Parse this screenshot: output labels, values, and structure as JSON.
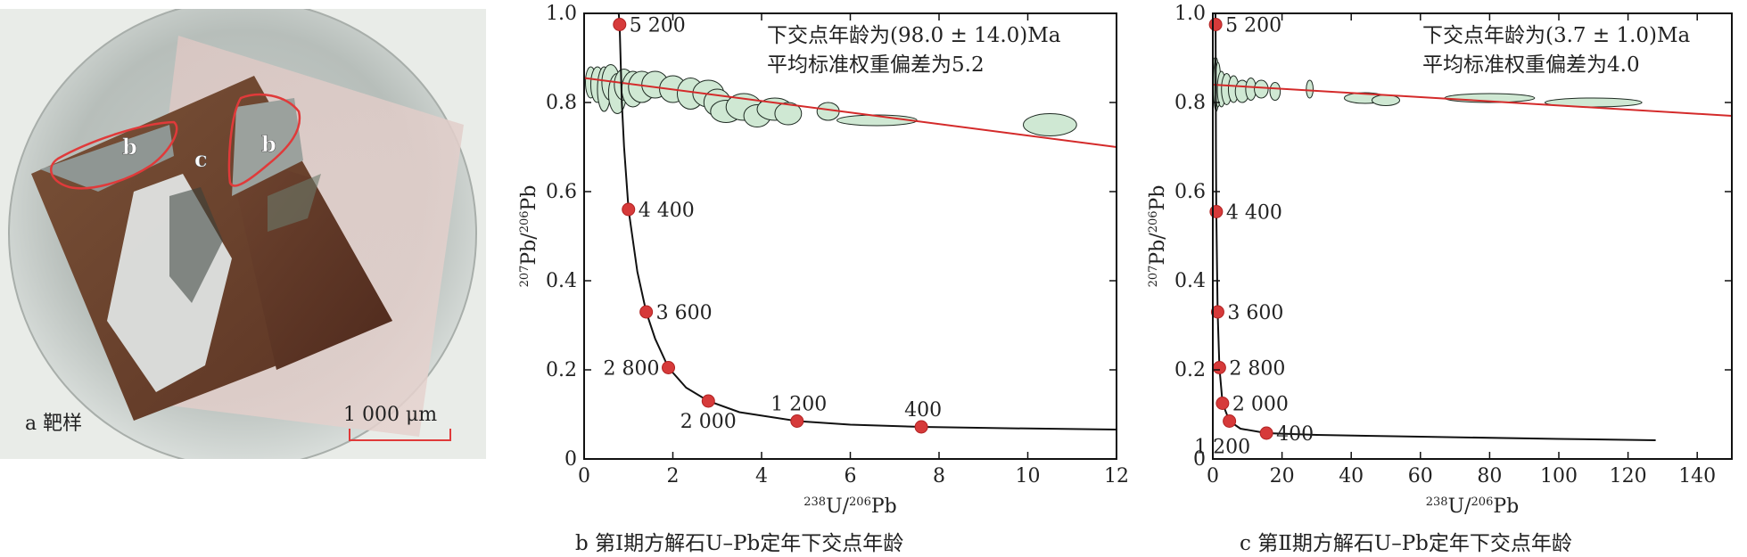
{
  "panel_a": {
    "caption": "a 靶样",
    "region_labels": [
      "b",
      "c",
      "b"
    ],
    "scale_bar_label": "1 000 μm",
    "colors": {
      "outline": "#e03a3a",
      "scale_bar": "#e03a3a"
    }
  },
  "panel_b_caption": "b 第Ⅰ期方解石U–Pb定年下交点年龄",
  "panel_c_caption": "c 第Ⅱ期方解石U–Pb定年下交点年龄",
  "chart_data": [
    {
      "type": "scatter",
      "title": "",
      "xlabel_html": "<tspan font-size='13' dy='-8'>238</tspan><tspan dy='8'>U/</tspan><tspan font-size='13' dy='-8'>206</tspan><tspan dy='8'>Pb</tspan>",
      "ylabel_html": "<tspan font-size='13' dy='-8'>207</tspan><tspan dy='8'>Pb/</tspan><tspan font-size='13' dy='-8'>206</tspan><tspan dy='8'>Pb</tspan>",
      "xlim": [
        0,
        12
      ],
      "ylim": [
        0,
        1.0
      ],
      "xticks": [
        0,
        2,
        4,
        6,
        8,
        10,
        12
      ],
      "yticks": [
        0,
        0.2,
        0.4,
        0.6,
        0.8,
        1.0
      ],
      "ytick_labels": [
        "0",
        "0.2",
        "0.4",
        "0.6",
        "0.8",
        "1.0"
      ],
      "annotation": [
        "下交点年龄为(98.0 ± 14.0)Ma",
        "平均标准权重偏差为5.2"
      ],
      "concordia_points": [
        {
          "age": "5 200",
          "x": 0.8,
          "y": 0.975,
          "label_pos": "right"
        },
        {
          "age": "4 400",
          "x": 1.0,
          "y": 0.56,
          "label_pos": "right"
        },
        {
          "age": "3 600",
          "x": 1.4,
          "y": 0.33,
          "label_pos": "right"
        },
        {
          "age": "2 800",
          "x": 1.9,
          "y": 0.205,
          "label_pos": "left"
        },
        {
          "age": "2 000",
          "x": 2.8,
          "y": 0.13,
          "label_pos": "below"
        },
        {
          "age": "1 200",
          "x": 4.8,
          "y": 0.085,
          "label_pos": "above"
        },
        {
          "age": "400",
          "x": 7.6,
          "y": 0.072,
          "label_pos": "above"
        }
      ],
      "concordia_curve": [
        [
          0.78,
          1.0
        ],
        [
          0.8,
          0.975
        ],
        [
          0.85,
          0.8
        ],
        [
          0.9,
          0.7
        ],
        [
          1.0,
          0.56
        ],
        [
          1.2,
          0.42
        ],
        [
          1.4,
          0.33
        ],
        [
          1.6,
          0.27
        ],
        [
          1.9,
          0.205
        ],
        [
          2.3,
          0.16
        ],
        [
          2.8,
          0.13
        ],
        [
          3.5,
          0.105
        ],
        [
          4.8,
          0.085
        ],
        [
          6.0,
          0.077
        ],
        [
          7.6,
          0.072
        ],
        [
          9.5,
          0.069
        ],
        [
          12.0,
          0.066
        ]
      ],
      "regression_line": [
        [
          0,
          0.855
        ],
        [
          12,
          0.7
        ]
      ],
      "ellipses": [
        {
          "x": 0.15,
          "y": 0.845,
          "rx": 0.12,
          "ry": 0.035
        },
        {
          "x": 0.3,
          "y": 0.84,
          "rx": 0.15,
          "ry": 0.04
        },
        {
          "x": 0.45,
          "y": 0.83,
          "rx": 0.15,
          "ry": 0.05
        },
        {
          "x": 0.6,
          "y": 0.845,
          "rx": 0.2,
          "ry": 0.04
        },
        {
          "x": 0.75,
          "y": 0.82,
          "rx": 0.2,
          "ry": 0.045
        },
        {
          "x": 0.9,
          "y": 0.84,
          "rx": 0.22,
          "ry": 0.035
        },
        {
          "x": 1.1,
          "y": 0.83,
          "rx": 0.25,
          "ry": 0.04
        },
        {
          "x": 1.3,
          "y": 0.835,
          "rx": 0.3,
          "ry": 0.035
        },
        {
          "x": 1.6,
          "y": 0.84,
          "rx": 0.3,
          "ry": 0.03
        },
        {
          "x": 2.0,
          "y": 0.83,
          "rx": 0.3,
          "ry": 0.03
        },
        {
          "x": 2.4,
          "y": 0.82,
          "rx": 0.3,
          "ry": 0.035
        },
        {
          "x": 2.8,
          "y": 0.82,
          "rx": 0.35,
          "ry": 0.03
        },
        {
          "x": 3.0,
          "y": 0.8,
          "rx": 0.3,
          "ry": 0.03
        },
        {
          "x": 3.2,
          "y": 0.78,
          "rx": 0.35,
          "ry": 0.025
        },
        {
          "x": 3.6,
          "y": 0.79,
          "rx": 0.4,
          "ry": 0.03
        },
        {
          "x": 3.9,
          "y": 0.77,
          "rx": 0.3,
          "ry": 0.025
        },
        {
          "x": 4.3,
          "y": 0.785,
          "rx": 0.4,
          "ry": 0.025
        },
        {
          "x": 4.6,
          "y": 0.775,
          "rx": 0.3,
          "ry": 0.025
        },
        {
          "x": 5.5,
          "y": 0.78,
          "rx": 0.25,
          "ry": 0.02
        },
        {
          "x": 6.6,
          "y": 0.76,
          "rx": 0.9,
          "ry": 0.012
        },
        {
          "x": 10.5,
          "y": 0.75,
          "rx": 0.6,
          "ry": 0.025
        }
      ]
    },
    {
      "type": "scatter",
      "title": "",
      "xlabel_html": "<tspan font-size='13' dy='-8'>238</tspan><tspan dy='8'>U/</tspan><tspan font-size='13' dy='-8'>206</tspan><tspan dy='8'>Pb</tspan>",
      "ylabel_html": "<tspan font-size='13' dy='-8'>207</tspan><tspan dy='8'>Pb/</tspan><tspan font-size='13' dy='-8'>206</tspan><tspan dy='8'>Pb</tspan>",
      "xlim": [
        0,
        150
      ],
      "ylim": [
        0,
        1.0
      ],
      "xticks": [
        0,
        20,
        40,
        60,
        80,
        100,
        120,
        140
      ],
      "yticks": [
        0,
        0.2,
        0.4,
        0.6,
        0.8,
        1.0
      ],
      "ytick_labels": [
        "0",
        "0.2",
        "0.4",
        "0.6",
        "0.8",
        "1.0"
      ],
      "annotation": [
        "下交点年龄为(3.7 ± 1.0)Ma",
        "平均标准权重偏差为4.0"
      ],
      "concordia_points": [
        {
          "age": "5 200",
          "x": 0.8,
          "y": 0.975,
          "label_pos": "right"
        },
        {
          "age": "4 400",
          "x": 1.0,
          "y": 0.555,
          "label_pos": "right"
        },
        {
          "age": "3 600",
          "x": 1.4,
          "y": 0.33,
          "label_pos": "right"
        },
        {
          "age": "2 800",
          "x": 1.9,
          "y": 0.205,
          "label_pos": "right"
        },
        {
          "age": "2 000",
          "x": 2.8,
          "y": 0.125,
          "label_pos": "right"
        },
        {
          "age": "1 200",
          "x": 4.8,
          "y": 0.085,
          "label_pos": "belowleft"
        },
        {
          "age": "400",
          "x": 15.5,
          "y": 0.058,
          "label_pos": "right"
        }
      ],
      "concordia_curve": [
        [
          0.75,
          1.0
        ],
        [
          0.8,
          0.975
        ],
        [
          0.9,
          0.7
        ],
        [
          1.0,
          0.555
        ],
        [
          1.4,
          0.33
        ],
        [
          1.9,
          0.205
        ],
        [
          2.8,
          0.125
        ],
        [
          4.8,
          0.085
        ],
        [
          8,
          0.068
        ],
        [
          15.5,
          0.058
        ],
        [
          30,
          0.054
        ],
        [
          60,
          0.05
        ],
        [
          100,
          0.045
        ],
        [
          128,
          0.042
        ]
      ],
      "regression_line": [
        [
          0,
          0.84
        ],
        [
          150,
          0.77
        ]
      ],
      "ellipses": [
        {
          "x": 0.5,
          "y": 0.85,
          "rx": 0.6,
          "ry": 0.05
        },
        {
          "x": 1.0,
          "y": 0.84,
          "rx": 0.8,
          "ry": 0.06
        },
        {
          "x": 1.5,
          "y": 0.84,
          "rx": 0.8,
          "ry": 0.05
        },
        {
          "x": 2.5,
          "y": 0.83,
          "rx": 1.2,
          "ry": 0.04
        },
        {
          "x": 4,
          "y": 0.83,
          "rx": 1.5,
          "ry": 0.035
        },
        {
          "x": 6,
          "y": 0.83,
          "rx": 1.5,
          "ry": 0.03
        },
        {
          "x": 8.5,
          "y": 0.825,
          "rx": 2,
          "ry": 0.025
        },
        {
          "x": 11,
          "y": 0.83,
          "rx": 1.5,
          "ry": 0.025
        },
        {
          "x": 14,
          "y": 0.83,
          "rx": 2,
          "ry": 0.02
        },
        {
          "x": 18,
          "y": 0.825,
          "rx": 1.5,
          "ry": 0.02
        },
        {
          "x": 28,
          "y": 0.83,
          "rx": 1,
          "ry": 0.02
        },
        {
          "x": 44,
          "y": 0.81,
          "rx": 6,
          "ry": 0.012
        },
        {
          "x": 50,
          "y": 0.805,
          "rx": 4,
          "ry": 0.012
        },
        {
          "x": 80,
          "y": 0.81,
          "rx": 13,
          "ry": 0.01
        },
        {
          "x": 110,
          "y": 0.8,
          "rx": 14,
          "ry": 0.01
        }
      ]
    }
  ]
}
